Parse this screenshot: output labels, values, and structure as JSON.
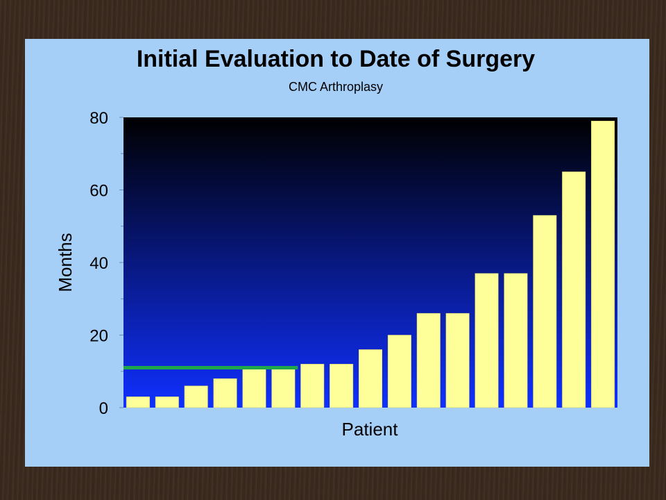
{
  "chart_data": {
    "type": "bar",
    "title": "Initial Evaluation to Date of Surgery",
    "subtitle": "CMC Arthroplasy",
    "xlabel": "Patient",
    "ylabel": "Months",
    "ylim": [
      0,
      80
    ],
    "yticks": [
      "0",
      "20",
      "40",
      "60",
      "80"
    ],
    "values": [
      3,
      3,
      6,
      8,
      11,
      11,
      12,
      12,
      16,
      20,
      26,
      26,
      37,
      37,
      53,
      65,
      79
    ],
    "reference_line": {
      "value": 11,
      "from_index": 0,
      "to_index": 5,
      "color": "#1fa64a"
    },
    "bar_color": "#ffff99",
    "plot_gradient": [
      "#000000",
      "#1030ff"
    ],
    "grid": false
  }
}
